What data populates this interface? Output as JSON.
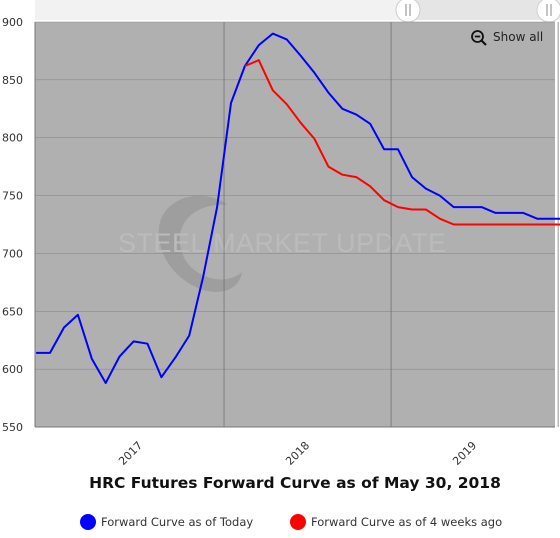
{
  "chart_data": {
    "type": "line",
    "title": "HRC Futures Forward Curve as of May 30, 2018",
    "watermark": "STEEL MARKET UPDATE",
    "ylim": [
      550,
      900
    ],
    "y_ticks": [
      550,
      600,
      650,
      700,
      750,
      800,
      850,
      900
    ],
    "x_tick_labels": [
      "2017",
      "2018",
      "2019"
    ],
    "grid": true,
    "legend_position": "bottom",
    "reset_zoom_label": "Show all",
    "background_color": "#b0b0b0",
    "series": [
      {
        "name": "Forward Curve as of Today",
        "color": "#0000ff",
        "points": [
          [
            "2016-06",
            614
          ],
          [
            "2016-07",
            614
          ],
          [
            "2016-08",
            636
          ],
          [
            "2016-09",
            647
          ],
          [
            "2016-10",
            609
          ],
          [
            "2016-11",
            588
          ],
          [
            "2016-12",
            611
          ],
          [
            "2017-01",
            624
          ],
          [
            "2017-02",
            622
          ],
          [
            "2017-03",
            593
          ],
          [
            "2017-04",
            610
          ],
          [
            "2017-05",
            629
          ],
          [
            "2017-06",
            680
          ],
          [
            "2017-07",
            740
          ],
          [
            "2017-08",
            830
          ],
          [
            "2017-09",
            862
          ],
          [
            "2017-10",
            880
          ],
          [
            "2017-11",
            890
          ],
          [
            "2017-12",
            885
          ],
          [
            "2018-01",
            871
          ],
          [
            "2018-02",
            856
          ],
          [
            "2018-03",
            839
          ],
          [
            "2018-04",
            825
          ],
          [
            "2018-05",
            820
          ],
          [
            "2018-06",
            812
          ],
          [
            "2018-07",
            790
          ],
          [
            "2018-08",
            790
          ],
          [
            "2018-09",
            766
          ],
          [
            "2018-10",
            756
          ],
          [
            "2018-11",
            750
          ],
          [
            "2018-12",
            740
          ],
          [
            "2019-01",
            740
          ],
          [
            "2019-02",
            740
          ],
          [
            "2019-03",
            735
          ],
          [
            "2019-04",
            735
          ],
          [
            "2019-05",
            735
          ],
          [
            "2019-06",
            730
          ],
          [
            "2019-07",
            730
          ],
          [
            "2019-08",
            730
          ]
        ]
      },
      {
        "name": "Forward Curve as of 4 weeks ago",
        "color": "#ff0000",
        "points": [
          [
            "2017-09",
            862
          ],
          [
            "2017-10",
            867
          ],
          [
            "2017-11",
            841
          ],
          [
            "2017-12",
            829
          ],
          [
            "2018-01",
            813
          ],
          [
            "2018-02",
            799
          ],
          [
            "2018-03",
            775
          ],
          [
            "2018-04",
            768
          ],
          [
            "2018-05",
            766
          ],
          [
            "2018-06",
            758
          ],
          [
            "2018-07",
            746
          ],
          [
            "2018-08",
            740
          ],
          [
            "2018-09",
            738
          ],
          [
            "2018-10",
            738
          ],
          [
            "2018-11",
            730
          ],
          [
            "2018-12",
            725
          ],
          [
            "2019-01",
            725
          ],
          [
            "2019-02",
            725
          ],
          [
            "2019-03",
            725
          ],
          [
            "2019-04",
            725
          ],
          [
            "2019-05",
            725
          ],
          [
            "2019-06",
            725
          ],
          [
            "2019-07",
            725
          ],
          [
            "2019-08",
            725
          ]
        ]
      }
    ]
  }
}
